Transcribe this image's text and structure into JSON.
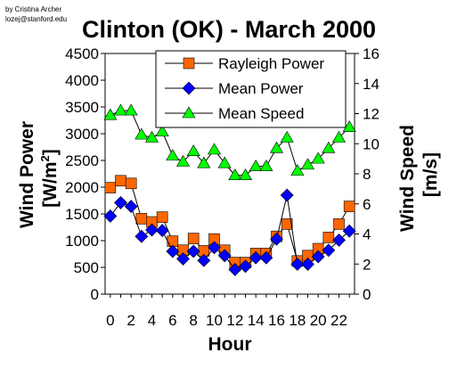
{
  "credit": {
    "line1": "by Cristina Archer",
    "line2": "lozej@stanford.edu"
  },
  "chart_data": {
    "type": "line",
    "title": "Clinton (OK) - March 2000",
    "xlabel": "Hour",
    "ylabel_left": "Wind Power",
    "ylabel_left_unit_prefix": "[W/m",
    "ylabel_left_unit_exp": "2",
    "ylabel_left_unit_suffix": "]",
    "ylabel_right": "Wind Speed",
    "ylabel_right_unit": "[m/s]",
    "x": [
      0,
      1,
      2,
      3,
      4,
      5,
      6,
      7,
      8,
      9,
      10,
      11,
      12,
      13,
      14,
      15,
      16,
      17,
      18,
      19,
      20,
      21,
      22,
      23
    ],
    "x_ticks": [
      0,
      2,
      4,
      6,
      8,
      10,
      12,
      14,
      16,
      18,
      20,
      22
    ],
    "xlim": [
      -0.5,
      23.5
    ],
    "ylim_left": [
      0,
      4500
    ],
    "y_ticks_left": [
      0,
      500,
      1000,
      1500,
      2000,
      2500,
      3000,
      3500,
      4000,
      4500
    ],
    "ylim_right": [
      0,
      16
    ],
    "y_ticks_right": [
      0,
      2,
      4,
      6,
      8,
      10,
      12,
      14,
      16
    ],
    "grid": false,
    "legend_position": "top-right",
    "series": [
      {
        "name": "Rayleigh Power",
        "axis": "left",
        "marker": "square",
        "color": "#ff6600",
        "values": [
          1990,
          2120,
          2070,
          1410,
          1350,
          1440,
          990,
          820,
          1040,
          810,
          1030,
          820,
          590,
          590,
          760,
          760,
          1080,
          1310,
          620,
          720,
          850,
          1060,
          1310,
          1640
        ]
      },
      {
        "name": "Mean Power",
        "axis": "left",
        "marker": "diamond",
        "color": "#0000ff",
        "values": [
          1460,
          1710,
          1640,
          1080,
          1200,
          1190,
          800,
          660,
          800,
          630,
          870,
          720,
          460,
          520,
          680,
          680,
          1030,
          1850,
          560,
          560,
          700,
          820,
          1010,
          1180
        ]
      },
      {
        "name": "Mean Speed",
        "axis": "right",
        "marker": "triangle",
        "color": "#00ff00",
        "values": [
          11.9,
          12.2,
          12.2,
          10.6,
          10.4,
          10.8,
          9.2,
          8.8,
          9.5,
          8.7,
          9.6,
          8.7,
          7.9,
          7.9,
          8.5,
          8.5,
          9.7,
          10.4,
          8.2,
          8.6,
          9.0,
          9.7,
          10.4,
          11.1
        ]
      }
    ]
  }
}
